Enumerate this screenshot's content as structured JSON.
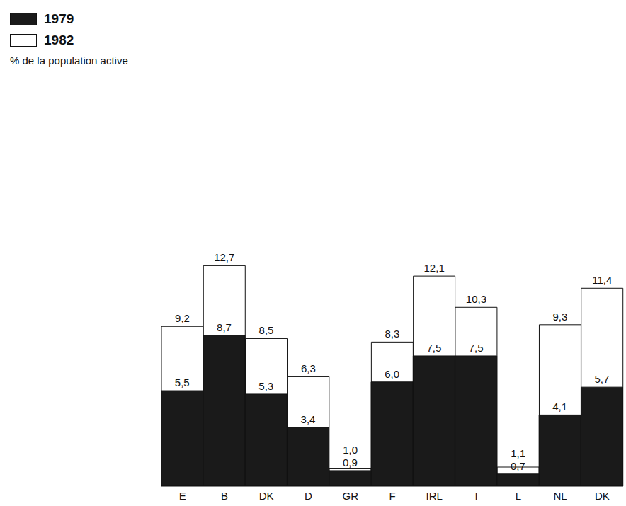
{
  "chart_data": {
    "type": "bar",
    "categories": [
      "E",
      "B",
      "DK",
      "D",
      "GR",
      "F",
      "IRL",
      "I",
      "L",
      "NL",
      "DK"
    ],
    "series": [
      {
        "name": "1979",
        "color": "#1a1a1a",
        "values": [
          5.5,
          8.7,
          5.3,
          3.4,
          0.9,
          6.0,
          7.5,
          7.5,
          0.7,
          4.1,
          5.7
        ],
        "value_labels": [
          "5,5",
          "8,7",
          "5,3",
          "3,4",
          "0,9",
          "6,0",
          "7,5",
          "7,5",
          "0,7",
          "4,1",
          "5,7"
        ]
      },
      {
        "name": "1982",
        "color": "#ffffff",
        "values": [
          9.2,
          12.7,
          8.5,
          6.3,
          1.0,
          8.3,
          12.1,
          10.3,
          1.1,
          9.3,
          11.4
        ],
        "value_labels": [
          "9,2",
          "12,7",
          "8,5",
          "6,3",
          "1,0",
          "8,3",
          "12,1",
          "10,3",
          "1,1",
          "9,3",
          "11,4"
        ]
      }
    ],
    "ylim": [
      0,
      28
    ],
    "data_labels": true,
    "tick_labels": "x",
    "legend": "top-left",
    "stacked": false,
    "annotations": [
      "% de la population active"
    ]
  }
}
